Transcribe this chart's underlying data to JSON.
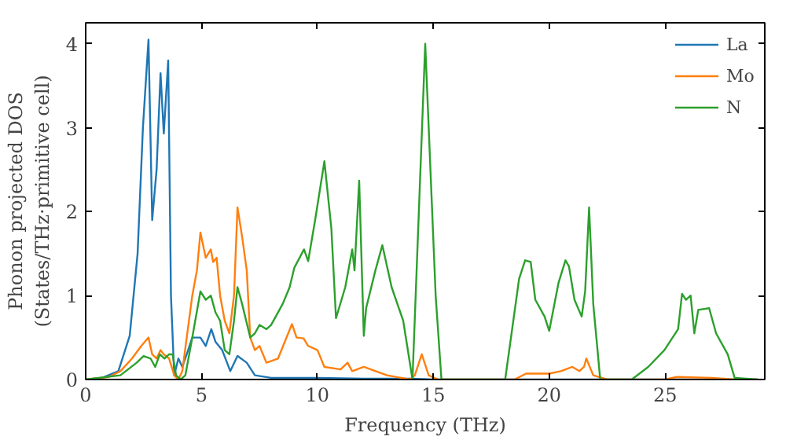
{
  "chart_data": {
    "type": "line",
    "xlabel": "Frequency (THz)",
    "ylabel": "Phonon projected DOS\n(States/THz·primitive cell)",
    "xlim": [
      0,
      29.3
    ],
    "ylim": [
      0,
      4.25
    ],
    "xticks": [
      0,
      5,
      10,
      15,
      20,
      25
    ],
    "yticks": [
      0,
      1,
      2,
      3,
      4
    ],
    "grid": false,
    "legend": "top right",
    "marker": "none",
    "line_style": "solid",
    "series": [
      {
        "name": "La",
        "color": "#1f77b4",
        "x": [
          0,
          0.71,
          1.41,
          1.9,
          2.24,
          2.47,
          2.71,
          2.87,
          3.06,
          3.23,
          3.37,
          3.56,
          3.68,
          3.82,
          4.0,
          4.17,
          4.36,
          4.6,
          4.95,
          5.18,
          5.42,
          5.6,
          5.89,
          6.24,
          6.55,
          6.95,
          7.3,
          8,
          10,
          12,
          14,
          15,
          29
        ],
        "values": [
          0,
          0.02,
          0.1,
          0.52,
          1.5,
          3.0,
          4.05,
          1.9,
          2.5,
          3.65,
          2.93,
          3.8,
          1.0,
          0.05,
          0.25,
          0.15,
          0.3,
          0.5,
          0.5,
          0.4,
          0.6,
          0.45,
          0.35,
          0.1,
          0.28,
          0.2,
          0.05,
          0.02,
          0.02,
          0.01,
          0.01,
          0,
          0
        ]
      },
      {
        "name": "Mo",
        "color": "#ff7f0e",
        "x": [
          0,
          1,
          1.5,
          2.0,
          2.4,
          2.71,
          2.87,
          3.06,
          3.23,
          3.37,
          3.6,
          3.82,
          4.0,
          4.17,
          4.36,
          4.6,
          4.8,
          4.95,
          5.18,
          5.4,
          5.5,
          5.65,
          5.8,
          6.0,
          6.2,
          6.4,
          6.55,
          6.75,
          6.95,
          7.1,
          7.3,
          7.5,
          7.8,
          8.3,
          8.9,
          9.1,
          9.4,
          9.6,
          10.0,
          10.3,
          11.0,
          11.3,
          11.5,
          12.0,
          13.0,
          14.0,
          14.2,
          14.5,
          14.8,
          15.2,
          18.5,
          19,
          20,
          20.5,
          21,
          21.3,
          21.5,
          21.6,
          21.9,
          22.5,
          25,
          25.5,
          27,
          28,
          29
        ],
        "values": [
          0,
          0.03,
          0.1,
          0.25,
          0.4,
          0.5,
          0.3,
          0.25,
          0.35,
          0.3,
          0.25,
          0.05,
          0,
          0.1,
          0.5,
          1.0,
          1.3,
          1.75,
          1.45,
          1.55,
          1.4,
          1.45,
          1.0,
          0.7,
          0.55,
          1.0,
          2.05,
          1.7,
          1.3,
          0.5,
          0.35,
          0.4,
          0.2,
          0.25,
          0.66,
          0.5,
          0.49,
          0.4,
          0.35,
          0.15,
          0.12,
          0.2,
          0.1,
          0.15,
          0.05,
          0,
          0.05,
          0.3,
          0.05,
          0,
          0,
          0.07,
          0.07,
          0.1,
          0.15,
          0.1,
          0.15,
          0.25,
          0.05,
          0,
          0,
          0.03,
          0.02,
          0,
          0
        ]
      },
      {
        "name": "N",
        "color": "#2ca02c",
        "x": [
          0,
          1.5,
          2.2,
          2.5,
          2.8,
          3.0,
          3.2,
          3.4,
          3.6,
          3.75,
          3.9,
          4.1,
          4.3,
          4.6,
          4.95,
          5.18,
          5.4,
          5.6,
          5.8,
          6.0,
          6.2,
          6.4,
          6.55,
          6.75,
          7.1,
          7.3,
          7.5,
          7.8,
          8.0,
          8.5,
          8.8,
          9.0,
          9.42,
          9.6,
          9.9,
          10.3,
          10.6,
          10.8,
          11.2,
          11.5,
          11.6,
          11.8,
          12.0,
          12.1,
          12.5,
          12.8,
          13.2,
          13.7,
          14.1,
          14.65,
          15.1,
          15.35,
          18.1,
          18.7,
          18.96,
          19.2,
          19.4,
          19.8,
          20.0,
          20.4,
          20.7,
          20.85,
          21.09,
          21.4,
          21.55,
          21.72,
          21.9,
          22.2,
          23.56,
          24.27,
          24.97,
          25.56,
          25.73,
          25.9,
          26.1,
          26.26,
          26.43,
          26.9,
          27.2,
          27.7,
          28.0,
          29
        ],
        "values": [
          0,
          0.05,
          0.2,
          0.28,
          0.25,
          0.15,
          0.3,
          0.25,
          0.3,
          0.3,
          0.05,
          0,
          0.05,
          0.5,
          1.05,
          0.95,
          1.0,
          0.8,
          0.7,
          0.35,
          0.3,
          0.7,
          1.1,
          0.9,
          0.5,
          0.55,
          0.65,
          0.6,
          0.65,
          0.9,
          1.1,
          1.33,
          1.55,
          1.41,
          1.9,
          2.6,
          1.8,
          0.73,
          1.1,
          1.55,
          1.3,
          2.37,
          0.52,
          0.85,
          1.3,
          1.6,
          1.1,
          0.7,
          0,
          4.0,
          1.0,
          0,
          0,
          1.2,
          1.42,
          1.4,
          0.95,
          0.75,
          0.58,
          1.15,
          1.42,
          1.35,
          0.95,
          0.75,
          1.05,
          2.05,
          0.9,
          0,
          0,
          0.15,
          0.35,
          0.6,
          1.02,
          0.95,
          1.0,
          0.55,
          0.83,
          0.85,
          0.55,
          0.3,
          0.02,
          0
        ]
      }
    ]
  }
}
